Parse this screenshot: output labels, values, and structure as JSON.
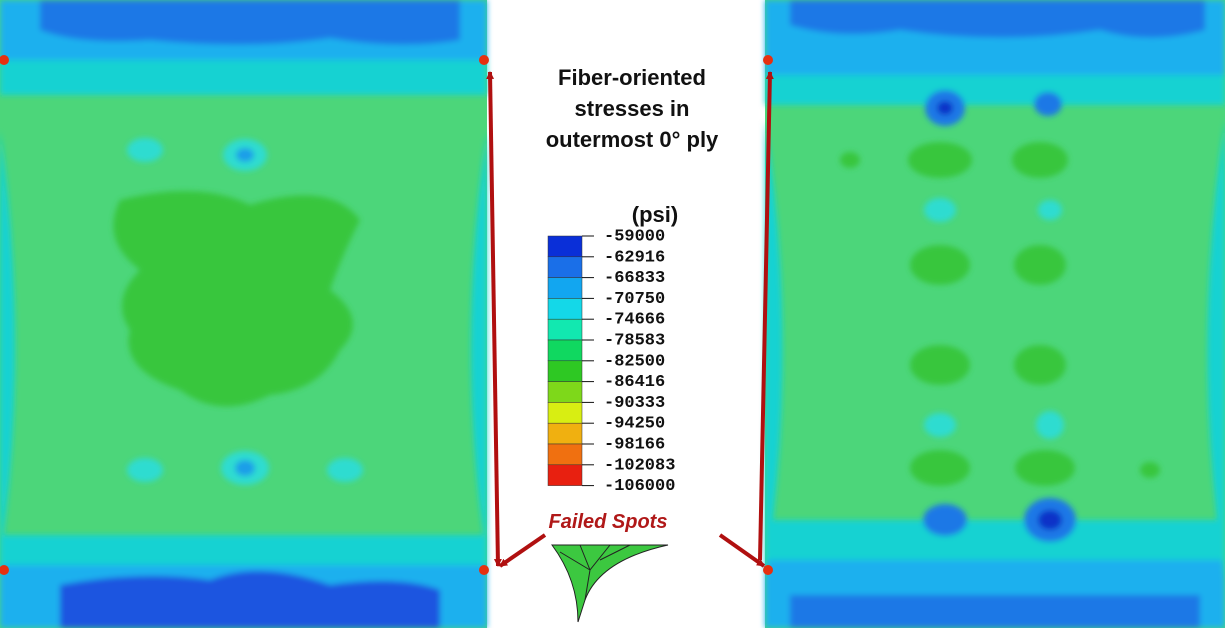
{
  "title_lines": [
    "Fiber-oriented",
    "stresses in",
    "outermost 0° ply"
  ],
  "legend": {
    "unit": "(psi)",
    "labels": [
      "-59000",
      "-62916",
      "-66833",
      "-70750",
      "-74666",
      "-78583",
      "-82500",
      "-86416",
      "-90333",
      "-94250",
      "-98166",
      "-102083",
      "-106000"
    ]
  },
  "annotation": "Failed Spots"
}
